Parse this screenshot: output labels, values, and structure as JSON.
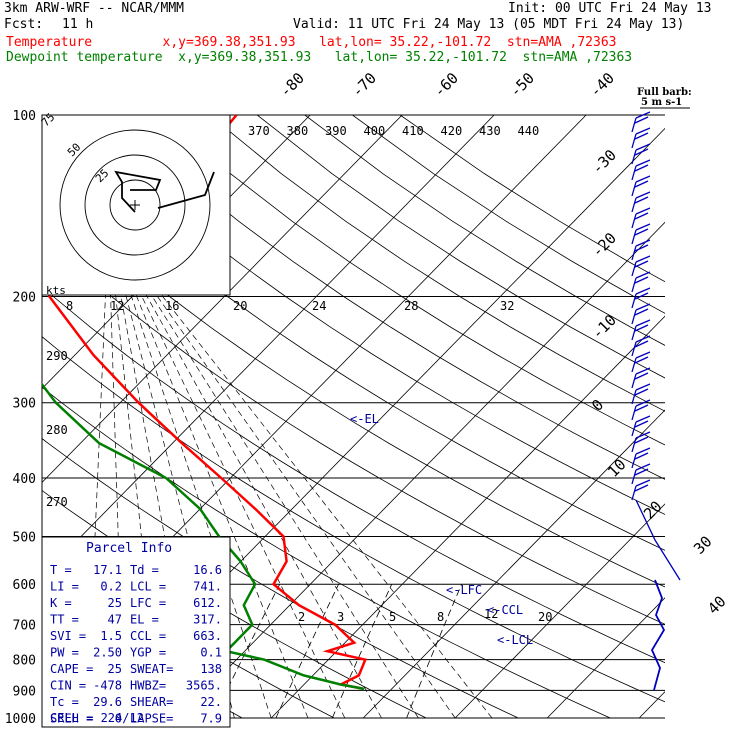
{
  "header": {
    "model": "3km ARW-WRF -- NCAR/MMM",
    "init": "Init: 00 UTC Fri 24 May 13",
    "fcst_label": "Fcst:",
    "fcst_value": "11 h",
    "valid": "Valid: 11 UTC Fri 24 May 13 (05 MDT Fri 24 May 13)",
    "line_temperature": "Temperature         x,y=369.38,351.93   lat,lon= 35.22,-101.72  stn=AMA ,72363",
    "line_dewpoint": "Dewpoint temperature  x,y=369.38,351.93   lat,lon= 35.22,-101.72  stn=AMA ,72363"
  },
  "colors": {
    "temperature": "#ff0000",
    "dewpoint": "#008000",
    "parcel": "#0000a0",
    "barbs": "#0000c0"
  },
  "chart_data": {
    "type": "line",
    "pressure_ticks": [
      "100",
      "200",
      "300",
      "400",
      "500",
      "600",
      "700",
      "800",
      "900",
      "1000"
    ],
    "isotherm_labels": [
      "-80",
      "-70",
      "-60",
      "-50",
      "-40",
      "-30",
      "-20",
      "-10",
      "0",
      "10",
      "20",
      "30",
      "40"
    ],
    "theta_labels": [
      "370",
      "380",
      "390",
      "400",
      "410",
      "420",
      "430",
      "440"
    ],
    "adiabat_labels": [
      "290",
      "280",
      "270"
    ],
    "hodograph": {
      "rings": [
        "75",
        "50",
        "25"
      ],
      "units": "kts",
      "axis_labels": [
        "8",
        "12",
        "16",
        "20",
        "24",
        "28",
        "32"
      ]
    },
    "mixing_ratio_labels": [
      "2",
      "3",
      "5",
      "8",
      "12",
      "20"
    ],
    "barb_key": {
      "line1": "Full barb:",
      "line2": "5 m s-1"
    },
    "levels": {
      "el": "<-EL",
      "lfc": "<-LFC",
      "ccl": "<-CCL",
      "lcl": "<-LCL"
    },
    "series": [
      {
        "name": "Temperature",
        "points_p_t": [
          [
            100,
            -58
          ],
          [
            125,
            -57
          ],
          [
            150,
            -60
          ],
          [
            175,
            -63
          ],
          [
            200,
            -59
          ],
          [
            250,
            -48
          ],
          [
            300,
            -38
          ],
          [
            350,
            -29
          ],
          [
            400,
            -21
          ],
          [
            450,
            -14
          ],
          [
            500,
            -8
          ],
          [
            550,
            -5
          ],
          [
            600,
            -4
          ],
          [
            650,
            1
          ],
          [
            700,
            7
          ],
          [
            750,
            11
          ],
          [
            775,
            9
          ],
          [
            800,
            14
          ],
          [
            850,
            15
          ],
          [
            880,
            14
          ],
          [
            895,
            17
          ]
        ]
      },
      {
        "name": "Dewpoint temperature",
        "points_p_t": [
          [
            100,
            -72
          ],
          [
            150,
            -75
          ],
          [
            200,
            -69
          ],
          [
            250,
            -56
          ],
          [
            300,
            -47
          ],
          [
            350,
            -38
          ],
          [
            400,
            -27
          ],
          [
            450,
            -20
          ],
          [
            500,
            -15
          ],
          [
            550,
            -10
          ],
          [
            600,
            -6
          ],
          [
            650,
            -5
          ],
          [
            700,
            -2
          ],
          [
            750,
            -2
          ],
          [
            775,
            -2
          ],
          [
            800,
            3
          ],
          [
            850,
            9
          ],
          [
            880,
            14
          ],
          [
            895,
            17
          ]
        ]
      }
    ],
    "parcel_info": {
      "title": "Parcel Info",
      "rows": [
        [
          "T  =",
          "17.1",
          "Td =",
          "16.6"
        ],
        [
          "LI =",
          "0.2",
          "LCL =",
          "741."
        ],
        [
          "K  =",
          "25",
          "LFC =",
          "612."
        ],
        [
          "TT =",
          "47",
          "EL  =",
          "317."
        ],
        [
          "SVI =",
          "1.5",
          "CCL =",
          "663."
        ],
        [
          "PW =",
          "2.50",
          "YGP =",
          "0.1"
        ],
        [
          "CAPE =",
          "25",
          "SWEAT=",
          "138"
        ],
        [
          "CIN =",
          "-478",
          "HWBZ=",
          "3565."
        ],
        [
          "Tc =",
          "29.6",
          "SHEAR=",
          "22."
        ],
        [
          "SREH =",
          "0",
          "LAPSE=",
          "7.9"
        ]
      ],
      "cell": "CELL = 224/12"
    }
  }
}
